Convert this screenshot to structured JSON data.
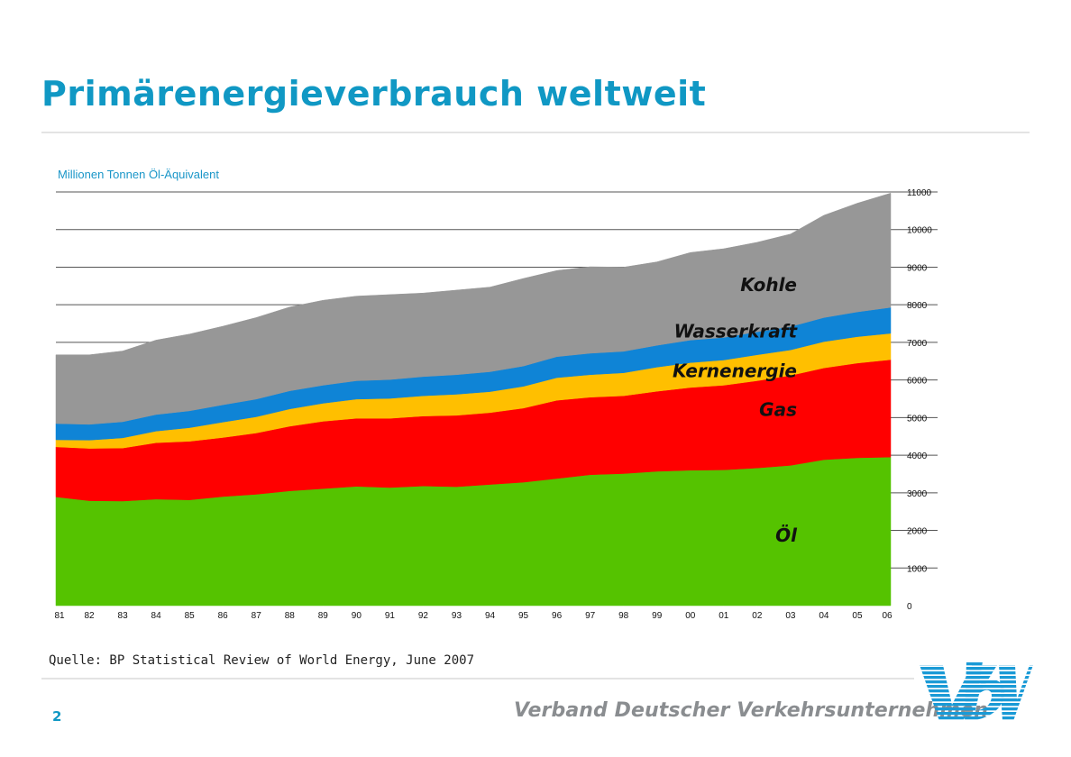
{
  "slide": {
    "title": "Primärenergieverbrauch weltweit",
    "source": "Quelle: BP Statistical Review of World Energy, June 2007",
    "page_number": "2",
    "organization": "Verband Deutscher Verkehrsunternehmen",
    "accent_color": "#1098c4"
  },
  "logo": {
    "text": "VDV",
    "color": "#1a9ad6"
  },
  "chart_data": {
    "type": "area",
    "stacked": true,
    "unit_label": "Millionen Tonnen Öl-Äquivalent",
    "x": [
      "81",
      "82",
      "83",
      "84",
      "85",
      "86",
      "87",
      "88",
      "89",
      "90",
      "91",
      "92",
      "93",
      "94",
      "95",
      "96",
      "97",
      "98",
      "99",
      "00",
      "01",
      "02",
      "03",
      "04",
      "05",
      "06"
    ],
    "ylim": [
      0,
      11000
    ],
    "yticks": [
      0,
      1000,
      2000,
      3000,
      4000,
      5000,
      6000,
      7000,
      8000,
      9000,
      10000,
      11000
    ],
    "y_axis_side": "right",
    "grid": "horizontal",
    "series": [
      {
        "name": "Öl",
        "color": "#55c300",
        "values": [
          2890,
          2790,
          2780,
          2830,
          2810,
          2900,
          2960,
          3050,
          3110,
          3170,
          3140,
          3180,
          3160,
          3220,
          3280,
          3380,
          3480,
          3510,
          3570,
          3600,
          3610,
          3660,
          3730,
          3880,
          3930,
          3950
        ]
      },
      {
        "name": "Gas",
        "color": "#ff0000",
        "values": [
          1330,
          1390,
          1410,
          1500,
          1560,
          1570,
          1630,
          1720,
          1790,
          1810,
          1840,
          1860,
          1900,
          1910,
          1970,
          2080,
          2060,
          2070,
          2130,
          2200,
          2250,
          2320,
          2390,
          2440,
          2520,
          2590
        ]
      },
      {
        "name": "Kernenergie",
        "color": "#ffbf00",
        "values": [
          190,
          220,
          270,
          310,
          360,
          410,
          430,
          460,
          480,
          510,
          530,
          540,
          560,
          560,
          580,
          600,
          600,
          610,
          640,
          660,
          670,
          690,
          680,
          700,
          700,
          700
        ]
      },
      {
        "name": "Wasserkraft",
        "color": "#0f84d6",
        "values": [
          430,
          420,
          430,
          440,
          450,
          460,
          470,
          480,
          480,
          490,
          500,
          510,
          520,
          530,
          540,
          560,
          570,
          570,
          580,
          600,
          600,
          610,
          620,
          640,
          660,
          690
        ]
      },
      {
        "name": "Kohle",
        "color": "#979797",
        "values": [
          1830,
          1850,
          1880,
          1980,
          2040,
          2090,
          2170,
          2230,
          2260,
          2250,
          2260,
          2220,
          2250,
          2250,
          2330,
          2290,
          2300,
          2240,
          2220,
          2330,
          2360,
          2380,
          2460,
          2720,
          2890,
          3040
        ]
      }
    ],
    "labels": [
      {
        "series": "Kohle",
        "text": "Kohle"
      },
      {
        "series": "Wasserkraft",
        "text": "Wasserkraft"
      },
      {
        "series": "Kernenergie",
        "text": "Kernenergie"
      },
      {
        "series": "Gas",
        "text": "Gas"
      },
      {
        "series": "Öl",
        "text": "Öl"
      }
    ]
  }
}
